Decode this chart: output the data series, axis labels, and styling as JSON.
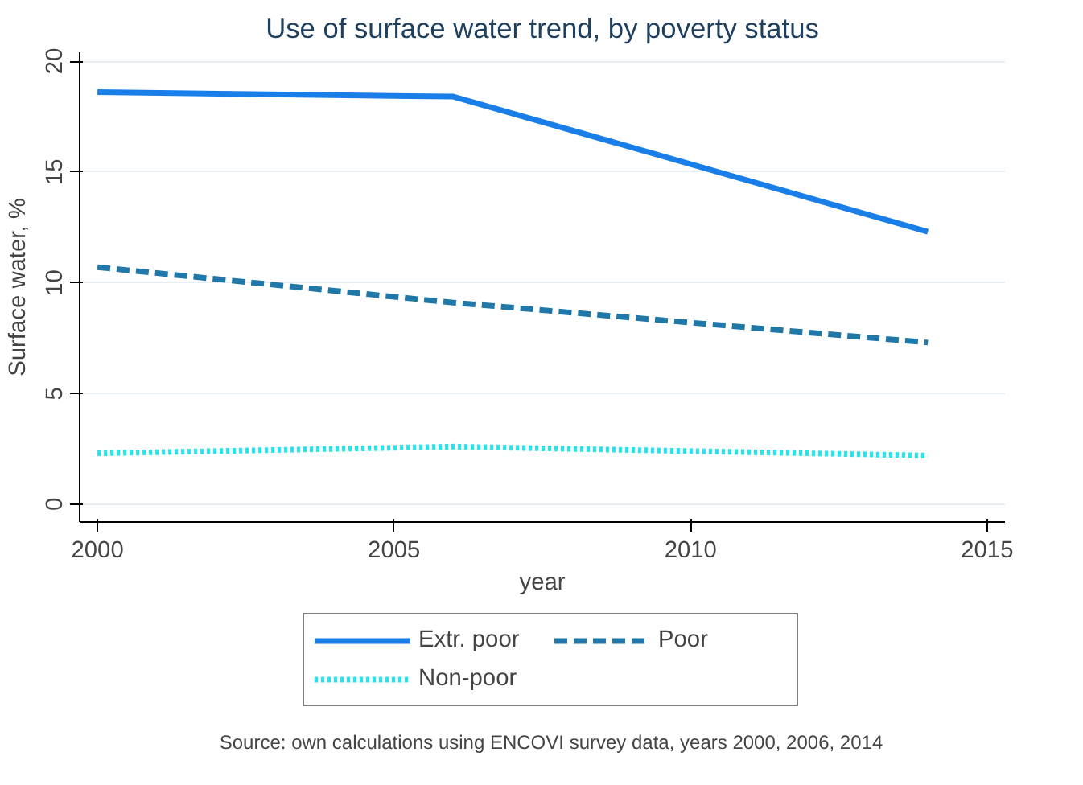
{
  "chart_data": {
    "type": "line",
    "title": "Use of surface water trend, by poverty status",
    "xlabel": "year",
    "ylabel": "Surface water, %",
    "x": [
      2000,
      2006,
      2014
    ],
    "series": [
      {
        "name": "Extr. poor",
        "color": "#1a7ee8",
        "values": [
          18.6,
          18.4,
          12.3
        ],
        "line_style": "solid"
      },
      {
        "name": "Poor",
        "color": "#1f78a8",
        "values": [
          10.7,
          9.1,
          7.3
        ],
        "line_style": "dashed"
      },
      {
        "name": "Non-poor",
        "color": "#1ce8f0",
        "values": [
          2.3,
          2.6,
          2.2
        ],
        "line_style": "dotted"
      }
    ],
    "xlim": [
      1999.7,
      2015.3
    ],
    "ylim": [
      -0.8,
      20.4
    ],
    "xticks": [
      2000,
      2005,
      2010,
      2015
    ],
    "yticks": [
      0,
      5,
      10,
      15,
      20
    ],
    "grid": "y",
    "legend": "bottom",
    "marker": "none",
    "annotations": [
      "Source: own calculations using ENCOVI survey data, years 2000, 2006, 2014"
    ]
  }
}
